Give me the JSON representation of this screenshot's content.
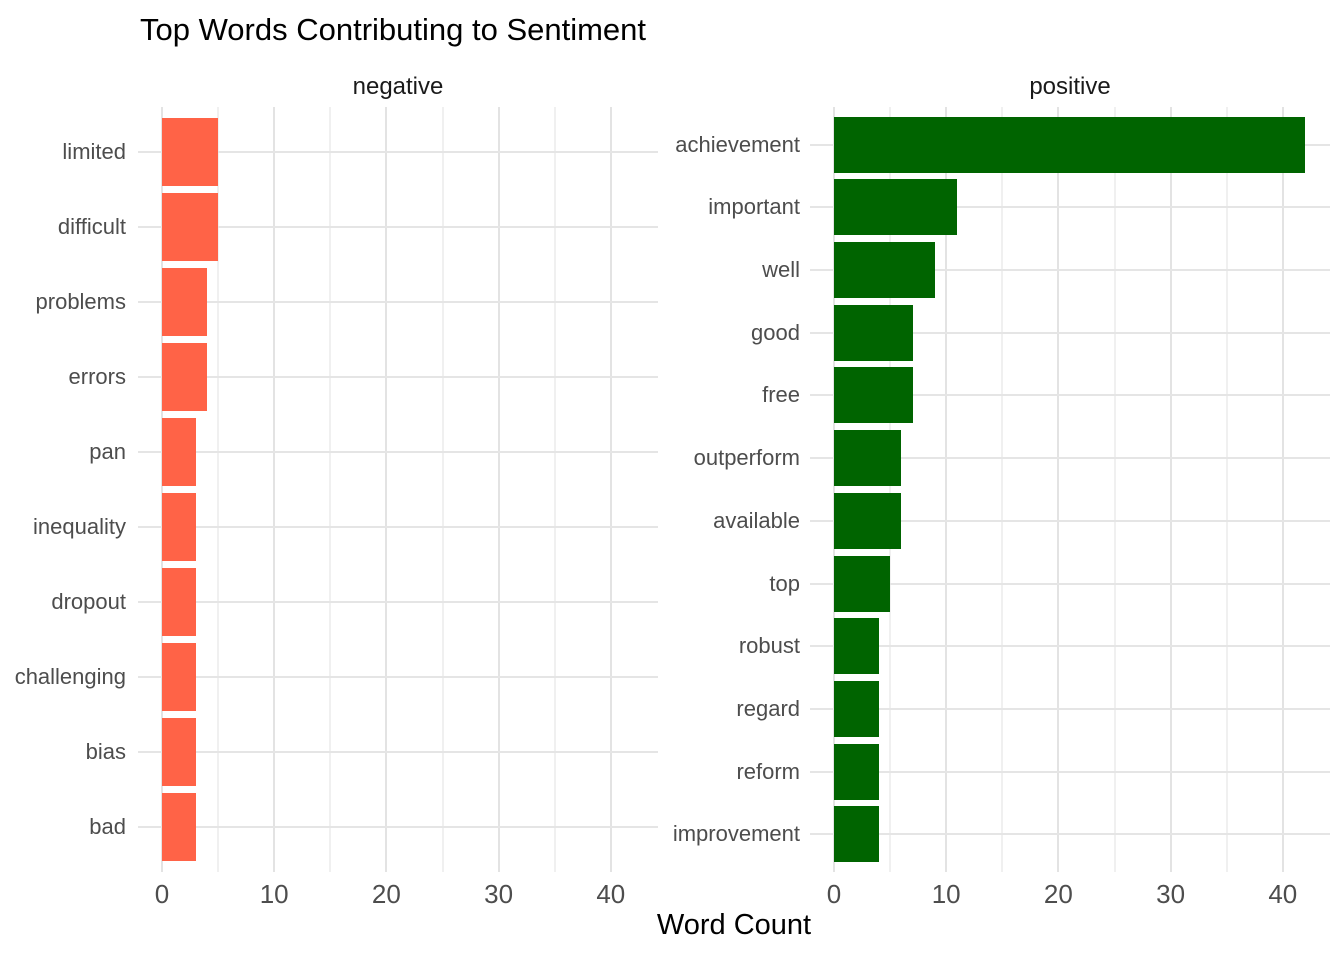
{
  "chart_data": {
    "type": "bar",
    "orientation": "horizontal",
    "title": "Top Words Contributing to Sentiment",
    "xlabel": "Word Count",
    "ylabel": "",
    "x_axis": {
      "tick_labels": [
        0,
        10,
        20,
        30,
        40
      ],
      "minor_ticks": [
        5,
        15,
        25,
        35
      ],
      "lim": [
        0,
        44
      ]
    },
    "grid": "major and minor vertical, major horizontal per category row",
    "legend": "none",
    "facets": [
      {
        "label": "negative",
        "bar_color": "#FF6347",
        "categories": [
          "limited",
          "difficult",
          "problems",
          "errors",
          "pan",
          "inequality",
          "dropout",
          "challenging",
          "bias",
          "bad"
        ],
        "values": [
          5,
          5,
          4,
          4,
          3,
          3,
          3,
          3,
          3,
          3
        ]
      },
      {
        "label": "positive",
        "bar_color": "#006400",
        "categories": [
          "achievement",
          "important",
          "well",
          "good",
          "free",
          "outperform",
          "available",
          "top",
          "robust",
          "regard",
          "reform",
          "improvement"
        ],
        "values": [
          42,
          11,
          9,
          7,
          7,
          6,
          6,
          5,
          4,
          4,
          4,
          4
        ]
      }
    ],
    "colors": {
      "background": "#FFFFFF",
      "grid_major": "#E3E3E3",
      "grid_minor": "#F0F0F0",
      "axis_text": "#4D4D4D",
      "strip_text": "#1A1A1A",
      "title_text": "#000000"
    }
  }
}
